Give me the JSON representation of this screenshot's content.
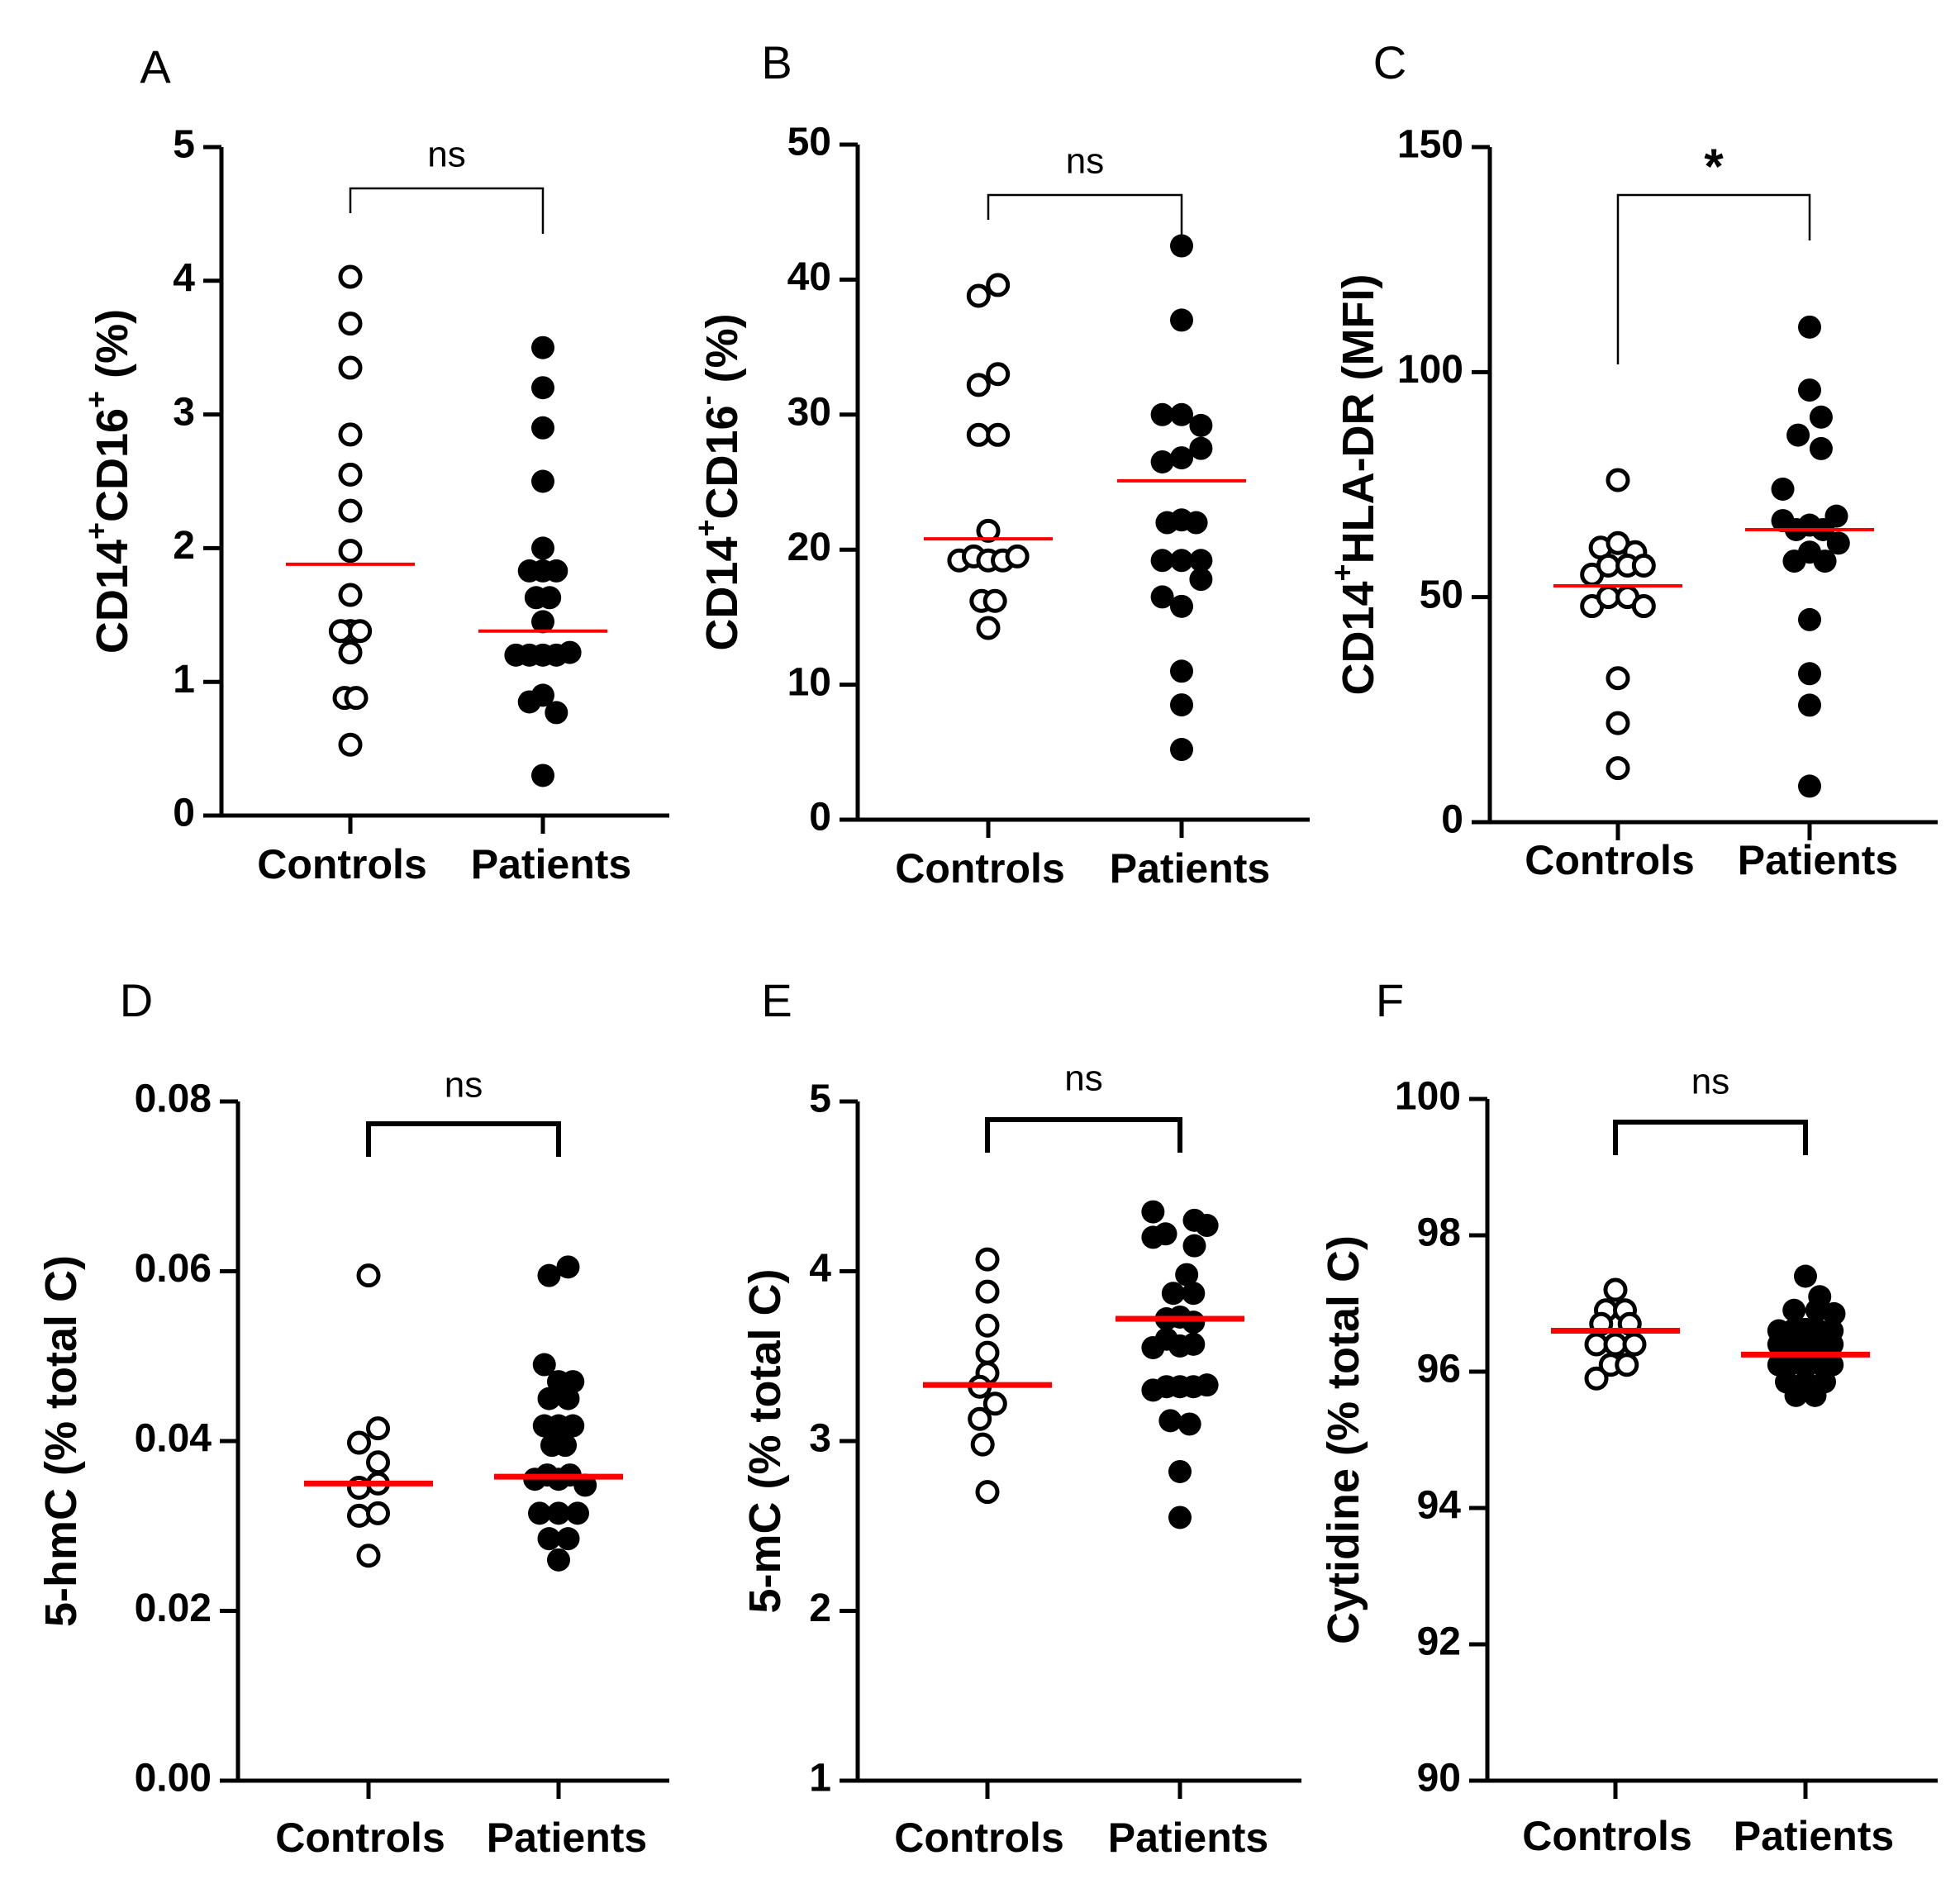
{
  "figure": {
    "background": "#ffffff",
    "mean_line_color": "#ff0000",
    "marker_color": "#000000"
  },
  "chart_data": [
    {
      "type": "scatter",
      "panel": "A",
      "ylabel": {
        "prefix": "CD14",
        "sup1": "+",
        "mid": "CD16",
        "sup2": "+",
        "suffix": " (%)"
      },
      "ylim": [
        0,
        5
      ],
      "yticks": [
        "0",
        "1",
        "2",
        "3",
        "4",
        "5"
      ],
      "categories": [
        "Controls",
        "Patients"
      ],
      "significance": "ns",
      "series": [
        {
          "name": "Controls",
          "marker": "open",
          "mean": 1.88,
          "points": [
            [
              0,
              4.03
            ],
            [
              0,
              3.68
            ],
            [
              0,
              3.35
            ],
            [
              0,
              2.85
            ],
            [
              0,
              2.55
            ],
            [
              0,
              2.28
            ],
            [
              0,
              1.98
            ],
            [
              0,
              1.65
            ],
            [
              0,
              1.38
            ],
            [
              -0.1,
              1.38
            ],
            [
              0.1,
              1.38
            ],
            [
              0,
              1.22
            ],
            [
              -0.06,
              0.88
            ],
            [
              0.06,
              0.88
            ],
            [
              0,
              0.53
            ]
          ]
        },
        {
          "name": "Patients",
          "marker": "filled",
          "mean": 1.38,
          "points": [
            [
              0,
              3.5
            ],
            [
              0,
              3.2
            ],
            [
              0,
              2.9
            ],
            [
              0,
              2.5
            ],
            [
              0,
              2.0
            ],
            [
              -0.14,
              1.83
            ],
            [
              0,
              1.83
            ],
            [
              0.14,
              1.83
            ],
            [
              -0.07,
              1.63
            ],
            [
              0.07,
              1.63
            ],
            [
              0,
              1.45
            ],
            [
              -0.28,
              1.2
            ],
            [
              -0.14,
              1.2
            ],
            [
              0,
              1.2
            ],
            [
              0.14,
              1.2
            ],
            [
              0.28,
              1.22
            ],
            [
              -0.14,
              0.85
            ],
            [
              0,
              0.9
            ],
            [
              0.14,
              0.77
            ],
            [
              0,
              0.3
            ]
          ]
        }
      ]
    },
    {
      "type": "scatter",
      "panel": "B",
      "ylabel": {
        "prefix": "CD14",
        "sup1": "+",
        "mid": "CD16",
        "sup2": "-",
        "suffix": " (%)"
      },
      "ylim": [
        0,
        50
      ],
      "yticks": [
        "0",
        "10",
        "20",
        "30",
        "40",
        "50"
      ],
      "categories": [
        "Controls",
        "Patients"
      ],
      "significance": "ns",
      "series": [
        {
          "name": "Controls",
          "marker": "open",
          "mean": 20.8,
          "points": [
            [
              -0.1,
              38.8
            ],
            [
              0.1,
              39.6
            ],
            [
              -0.1,
              32.2
            ],
            [
              0.1,
              33.0
            ],
            [
              -0.1,
              28.5
            ],
            [
              0.1,
              28.5
            ],
            [
              0,
              21.4
            ],
            [
              -0.3,
              19.2
            ],
            [
              -0.15,
              19.5
            ],
            [
              0,
              19.2
            ],
            [
              0.15,
              19.2
            ],
            [
              0.3,
              19.5
            ],
            [
              -0.07,
              16.2
            ],
            [
              0.07,
              16.2
            ],
            [
              0,
              14.2
            ]
          ]
        },
        {
          "name": "Patients",
          "marker": "filled",
          "mean": 25.1,
          "points": [
            [
              0,
              42.5
            ],
            [
              0,
              37.0
            ],
            [
              -0.2,
              30.0
            ],
            [
              0,
              30.0
            ],
            [
              0.2,
              29.2
            ],
            [
              -0.2,
              26.5
            ],
            [
              0,
              26.8
            ],
            [
              0.2,
              27.5
            ],
            [
              -0.15,
              22.0
            ],
            [
              0,
              22.2
            ],
            [
              0.15,
              22.0
            ],
            [
              -0.2,
              19.2
            ],
            [
              0,
              19.2
            ],
            [
              0.2,
              19.2
            ],
            [
              -0.2,
              16.5
            ],
            [
              0,
              15.8
            ],
            [
              0.2,
              17.8
            ],
            [
              0,
              11.0
            ],
            [
              0,
              8.5
            ],
            [
              0,
              5.2
            ]
          ]
        }
      ]
    },
    {
      "type": "scatter",
      "panel": "C",
      "ylabel": {
        "prefix": "CD14",
        "sup1": "+",
        "mid": "HLA-DR (MFI)",
        "sup2": "",
        "suffix": ""
      },
      "ylim": [
        0,
        150
      ],
      "yticks": [
        "0",
        "50",
        "100",
        "150"
      ],
      "categories": [
        "Controls",
        "Patients"
      ],
      "significance": "*",
      "series": [
        {
          "name": "Controls",
          "marker": "open",
          "mean": 52.5,
          "points": [
            [
              0,
              76
            ],
            [
              -0.18,
              61
            ],
            [
              0,
              62
            ],
            [
              0.18,
              60
            ],
            [
              -0.27,
              55
            ],
            [
              -0.1,
              57
            ],
            [
              0.1,
              57
            ],
            [
              0.27,
              57
            ],
            [
              -0.27,
              48
            ],
            [
              -0.1,
              50
            ],
            [
              0.1,
              50
            ],
            [
              0.27,
              48
            ],
            [
              0,
              32
            ],
            [
              0,
              22
            ],
            [
              0,
              12
            ]
          ]
        },
        {
          "name": "Patients",
          "marker": "filled",
          "mean": 65.0,
          "points": [
            [
              0,
              110
            ],
            [
              0,
              96
            ],
            [
              0.12,
              90
            ],
            [
              -0.12,
              86
            ],
            [
              0.12,
              83
            ],
            [
              -0.28,
              74
            ],
            [
              0.28,
              68
            ],
            [
              -0.28,
              67
            ],
            [
              -0.14,
              65
            ],
            [
              0,
              66
            ],
            [
              0.14,
              65
            ],
            [
              -0.16,
              58
            ],
            [
              0,
              60
            ],
            [
              0.16,
              58
            ],
            [
              0.3,
              62
            ],
            [
              0,
              45
            ],
            [
              0,
              33
            ],
            [
              0,
              26
            ],
            [
              0,
              8
            ]
          ]
        }
      ]
    },
    {
      "type": "scatter",
      "panel": "D",
      "ylabel": {
        "prefix": "5-hmC (% total C)",
        "sup1": "",
        "mid": "",
        "sup2": "",
        "suffix": ""
      },
      "ylim": [
        0,
        0.08
      ],
      "yticks": [
        "0.00",
        "0.02",
        "0.04",
        "0.06",
        "0.08"
      ],
      "categories": [
        "Controls",
        "Patients"
      ],
      "significance": "ns",
      "series": [
        {
          "name": "Controls",
          "marker": "open",
          "mean": 0.035,
          "points": [
            [
              0,
              0.0595
            ],
            [
              -0.1,
              0.0398
            ],
            [
              0.1,
              0.0415
            ],
            [
              0.1,
              0.0375
            ],
            [
              -0.1,
              0.0345
            ],
            [
              0.1,
              0.035
            ],
            [
              -0.1,
              0.0312
            ],
            [
              0.1,
              0.0315
            ],
            [
              0,
              0.0265
            ]
          ]
        },
        {
          "name": "Patients",
          "marker": "filled",
          "mean": 0.0358,
          "points": [
            [
              -0.1,
              0.0595
            ],
            [
              0.1,
              0.0605
            ],
            [
              -0.15,
              0.049
            ],
            [
              0,
              0.047
            ],
            [
              0.15,
              0.047
            ],
            [
              -0.1,
              0.045
            ],
            [
              0.1,
              0.045
            ],
            [
              -0.15,
              0.0418
            ],
            [
              0,
              0.0418
            ],
            [
              0.15,
              0.0418
            ],
            [
              -0.07,
              0.0395
            ],
            [
              0.07,
              0.0395
            ],
            [
              -0.25,
              0.0355
            ],
            [
              -0.12,
              0.036
            ],
            [
              0,
              0.0355
            ],
            [
              0.12,
              0.036
            ],
            [
              0.28,
              0.0348
            ],
            [
              -0.2,
              0.0315
            ],
            [
              0,
              0.0315
            ],
            [
              0.2,
              0.0315
            ],
            [
              -0.1,
              0.0285
            ],
            [
              0.1,
              0.0285
            ],
            [
              0,
              0.026
            ]
          ]
        }
      ]
    },
    {
      "type": "scatter",
      "panel": "E",
      "ylabel": {
        "prefix": "5-mC (% total C)",
        "sup1": "",
        "mid": "",
        "sup2": "",
        "suffix": ""
      },
      "ylim": [
        1,
        5
      ],
      "yticks": [
        "1",
        "2",
        "3",
        "4",
        "5"
      ],
      "categories": [
        "Controls",
        "Patients"
      ],
      "significance": "ns",
      "series": [
        {
          "name": "Controls",
          "marker": "open",
          "mean": 3.33,
          "points": [
            [
              0,
              4.07
            ],
            [
              0,
              3.88
            ],
            [
              0,
              3.68
            ],
            [
              0,
              3.52
            ],
            [
              0,
              3.4
            ],
            [
              -0.08,
              3.32
            ],
            [
              -0.08,
              3.13
            ],
            [
              0.08,
              3.22
            ],
            [
              -0.05,
              2.98
            ],
            [
              0,
              2.7
            ]
          ]
        },
        {
          "name": "Patients",
          "marker": "filled",
          "mean": 3.72,
          "points": [
            [
              -0.28,
              4.35
            ],
            [
              0.15,
              4.3
            ],
            [
              0.28,
              4.27
            ],
            [
              -0.28,
              4.2
            ],
            [
              -0.15,
              4.22
            ],
            [
              0.15,
              4.15
            ],
            [
              0.07,
              3.98
            ],
            [
              -0.07,
              3.87
            ],
            [
              0.14,
              3.87
            ],
            [
              -0.14,
              3.72
            ],
            [
              0,
              3.73
            ],
            [
              0.14,
              3.7
            ],
            [
              -0.28,
              3.55
            ],
            [
              -0.14,
              3.6
            ],
            [
              0,
              3.56
            ],
            [
              0.14,
              3.57
            ],
            [
              -0.28,
              3.3
            ],
            [
              -0.14,
              3.32
            ],
            [
              0,
              3.32
            ],
            [
              0.14,
              3.32
            ],
            [
              0.28,
              3.33
            ],
            [
              -0.1,
              3.12
            ],
            [
              0.1,
              3.1
            ],
            [
              0,
              2.82
            ],
            [
              0,
              2.55
            ]
          ]
        }
      ]
    },
    {
      "type": "scatter",
      "panel": "F",
      "ylabel": {
        "prefix": "Cytidine (% total C)",
        "sup1": "",
        "mid": "",
        "sup2": "",
        "suffix": ""
      },
      "ylim": [
        90,
        100
      ],
      "yticks": [
        "90",
        "92",
        "94",
        "96",
        "98",
        "100"
      ],
      "categories": [
        "Controls",
        "Patients"
      ],
      "significance": "ns",
      "series": [
        {
          "name": "Controls",
          "marker": "open",
          "mean": 96.6,
          "points": [
            [
              0,
              97.2
            ],
            [
              -0.1,
              96.9
            ],
            [
              0.1,
              96.9
            ],
            [
              -0.15,
              96.7
            ],
            [
              0.15,
              96.7
            ],
            [
              -0.2,
              96.4
            ],
            [
              0,
              96.4
            ],
            [
              0.2,
              96.4
            ],
            [
              -0.05,
              96.1
            ],
            [
              0.12,
              96.1
            ],
            [
              -0.2,
              95.9
            ]
          ]
        },
        {
          "name": "Patients",
          "marker": "filled",
          "mean": 96.25,
          "points": [
            [
              0,
              97.4
            ],
            [
              0.15,
              97.1
            ],
            [
              -0.12,
              96.9
            ],
            [
              0.12,
              96.9
            ],
            [
              0.3,
              96.85
            ],
            [
              -0.28,
              96.6
            ],
            [
              -0.14,
              96.6
            ],
            [
              0,
              96.62
            ],
            [
              0.14,
              96.6
            ],
            [
              0.28,
              96.6
            ],
            [
              -0.28,
              96.4
            ],
            [
              -0.14,
              96.42
            ],
            [
              0,
              96.4
            ],
            [
              0.14,
              96.42
            ],
            [
              0.28,
              96.4
            ],
            [
              -0.28,
              96.1
            ],
            [
              -0.14,
              96.12
            ],
            [
              0,
              96.1
            ],
            [
              0.14,
              96.12
            ],
            [
              0.28,
              96.1
            ],
            [
              -0.2,
              95.85
            ],
            [
              0,
              95.85
            ],
            [
              0.2,
              95.85
            ],
            [
              -0.1,
              95.65
            ],
            [
              0.1,
              95.65
            ]
          ]
        }
      ]
    }
  ]
}
